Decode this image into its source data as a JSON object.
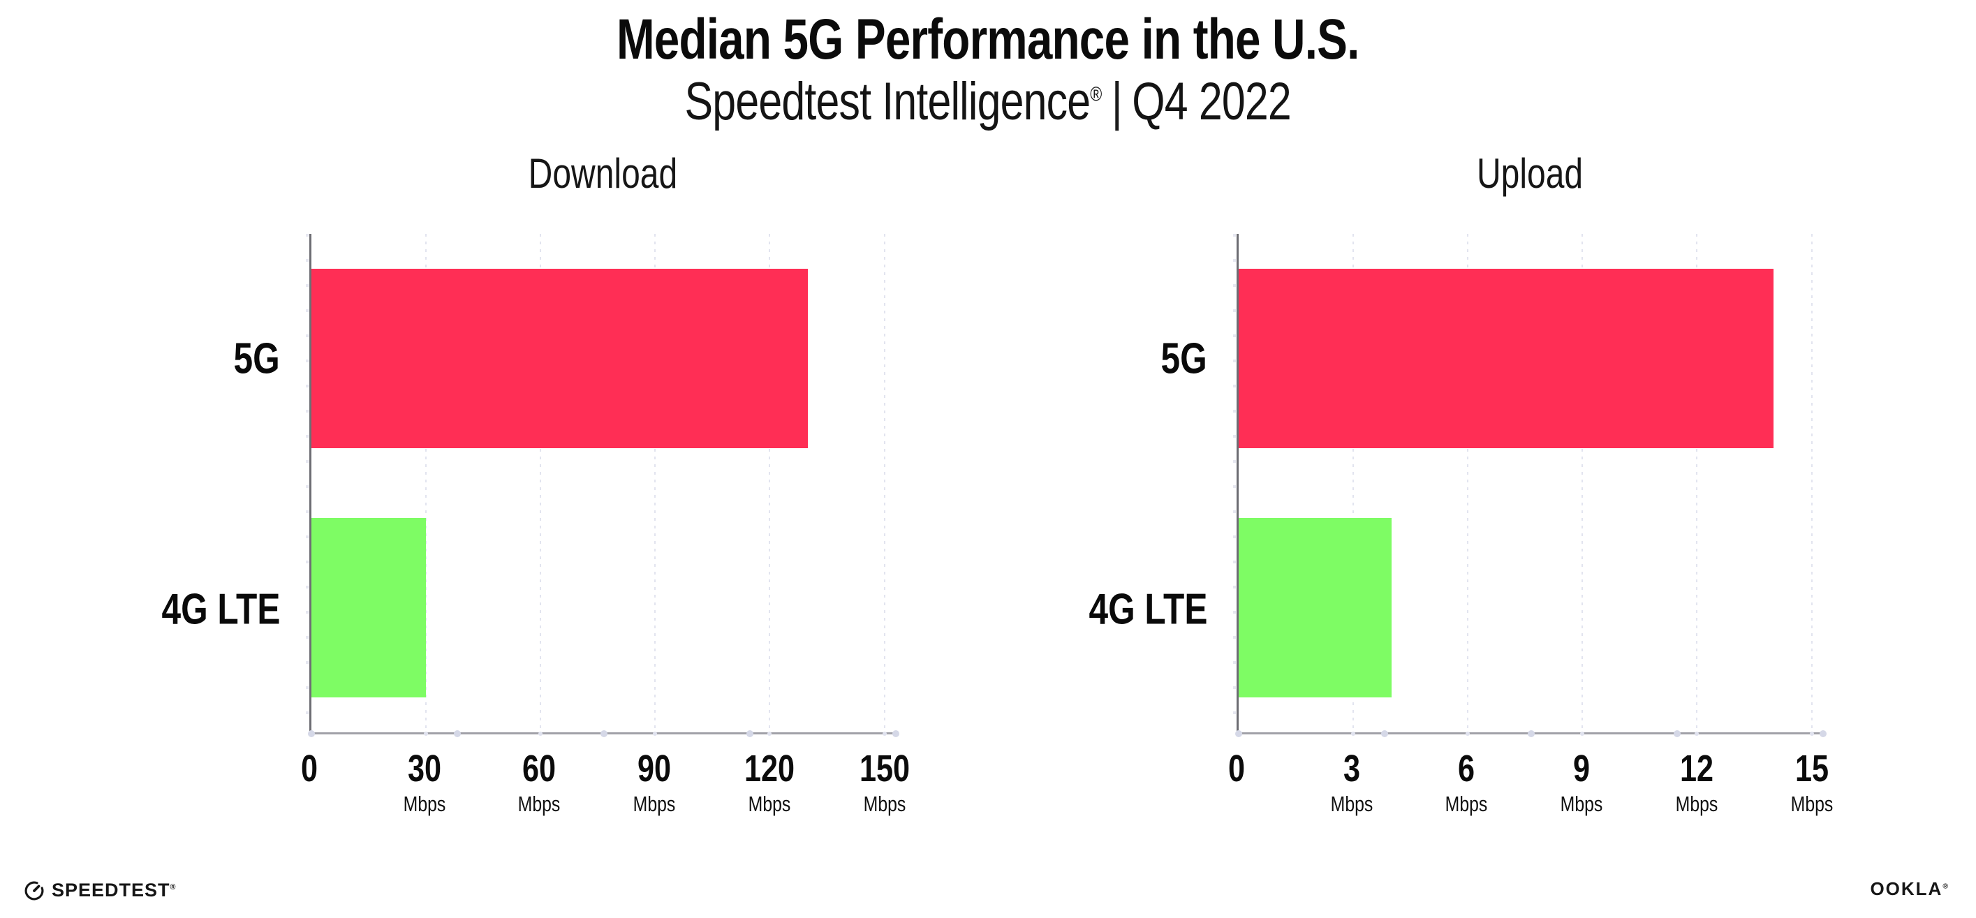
{
  "page": {
    "title": "Median 5G Performance in the U.S.",
    "subtitle": {
      "brand": "Speedtest Intelligence",
      "registered_mark": "®",
      "separator": "|",
      "period": "Q4 2022"
    }
  },
  "chart_data": [
    {
      "type": "bar",
      "orientation": "horizontal",
      "title": "Download",
      "categories": [
        "5G",
        "4G LTE"
      ],
      "values": [
        130,
        30
      ],
      "unit": "Mbps",
      "xticks": [
        0,
        30,
        60,
        90,
        120,
        150
      ],
      "xlim": [
        0,
        153
      ],
      "grid": "dotted-vertical",
      "legend": "none",
      "bar_colors": [
        "#ff2e55",
        "#7efc64"
      ]
    },
    {
      "type": "bar",
      "orientation": "horizontal",
      "title": "Upload",
      "categories": [
        "5G",
        "4G LTE"
      ],
      "values": [
        14,
        4
      ],
      "unit": "Mbps",
      "xticks": [
        0,
        3,
        6,
        9,
        12,
        15
      ],
      "xlim": [
        0,
        15.3
      ],
      "grid": "dotted-vertical",
      "legend": "none",
      "bar_colors": [
        "#ff2e55",
        "#7efc64"
      ]
    }
  ],
  "footer": {
    "speedtest_wordmark": "SPEEDTEST",
    "speedtest_mark": "®",
    "ookla_wordmark": "OOKLA",
    "ookla_mark": "®"
  },
  "colors": {
    "bar_5g": "#ff2e55",
    "bar_4g_lte": "#7efc64",
    "gridline": "#e2e4ef",
    "x_axis": "#a1a1a8",
    "y_axis": "#6d6d73",
    "text": "#0b0b0b"
  }
}
